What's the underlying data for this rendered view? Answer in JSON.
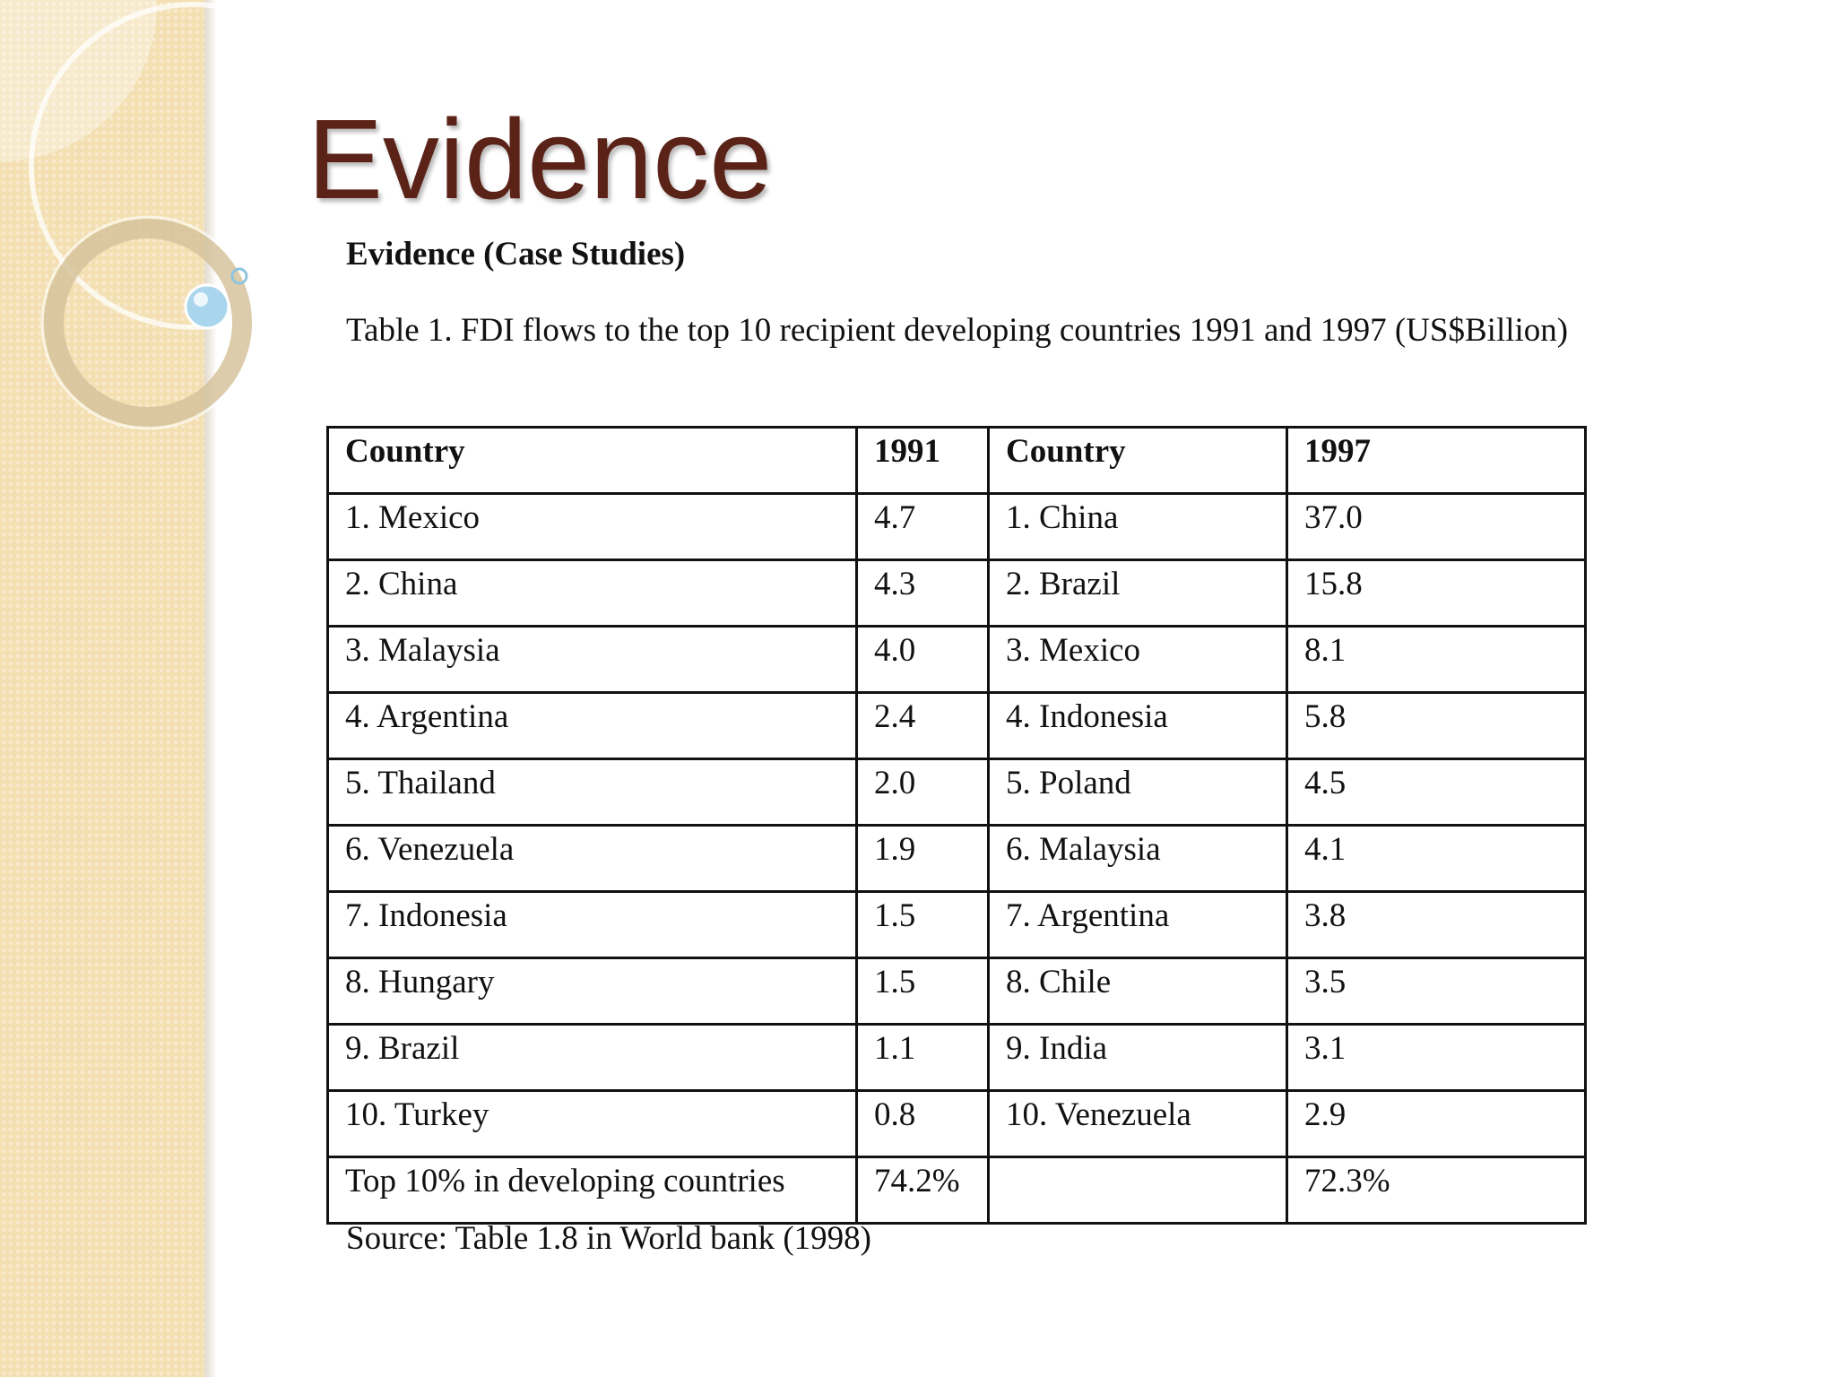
{
  "slide": {
    "title": "Evidence",
    "heading": "Evidence (Case Studies)",
    "caption": "Table 1. FDI flows to the top 10 recipient developing countries 1991 and 1997 (US$Billion)",
    "source": "Source: Table 1.8 in World bank (1998)"
  },
  "table": {
    "headers": [
      "Country",
      "1991",
      "Country",
      "1997"
    ],
    "rows": [
      [
        "1. Mexico",
        "4.7",
        "1. China",
        "37.0"
      ],
      [
        "2. China",
        "4.3",
        "2. Brazil",
        "15.8"
      ],
      [
        "3. Malaysia",
        "4.0",
        "3. Mexico",
        "8.1"
      ],
      [
        "4. Argentina",
        "2.4",
        "4. Indonesia",
        "5.8"
      ],
      [
        "5. Thailand",
        "2.0",
        "5. Poland",
        "4.5"
      ],
      [
        "6. Venezuela",
        "1.9",
        "6. Malaysia",
        "4.1"
      ],
      [
        "7. Indonesia",
        "1.5",
        "7. Argentina",
        "3.8"
      ],
      [
        "8. Hungary",
        "1.5",
        "8. Chile",
        "3.5"
      ],
      [
        "9. Brazil",
        "1.1",
        "9. India",
        "3.1"
      ],
      [
        "10. Turkey",
        "0.8",
        "10. Venezuela",
        "2.9"
      ],
      [
        "Top 10% in developing countries",
        "74.2%",
        "",
        "72.3%"
      ]
    ]
  },
  "theme": {
    "title_color": "#5b2318",
    "side_band_color": "#f3dfb1",
    "ring_color": "#d8c6a0",
    "bubble_color": "#a9d6ec"
  }
}
